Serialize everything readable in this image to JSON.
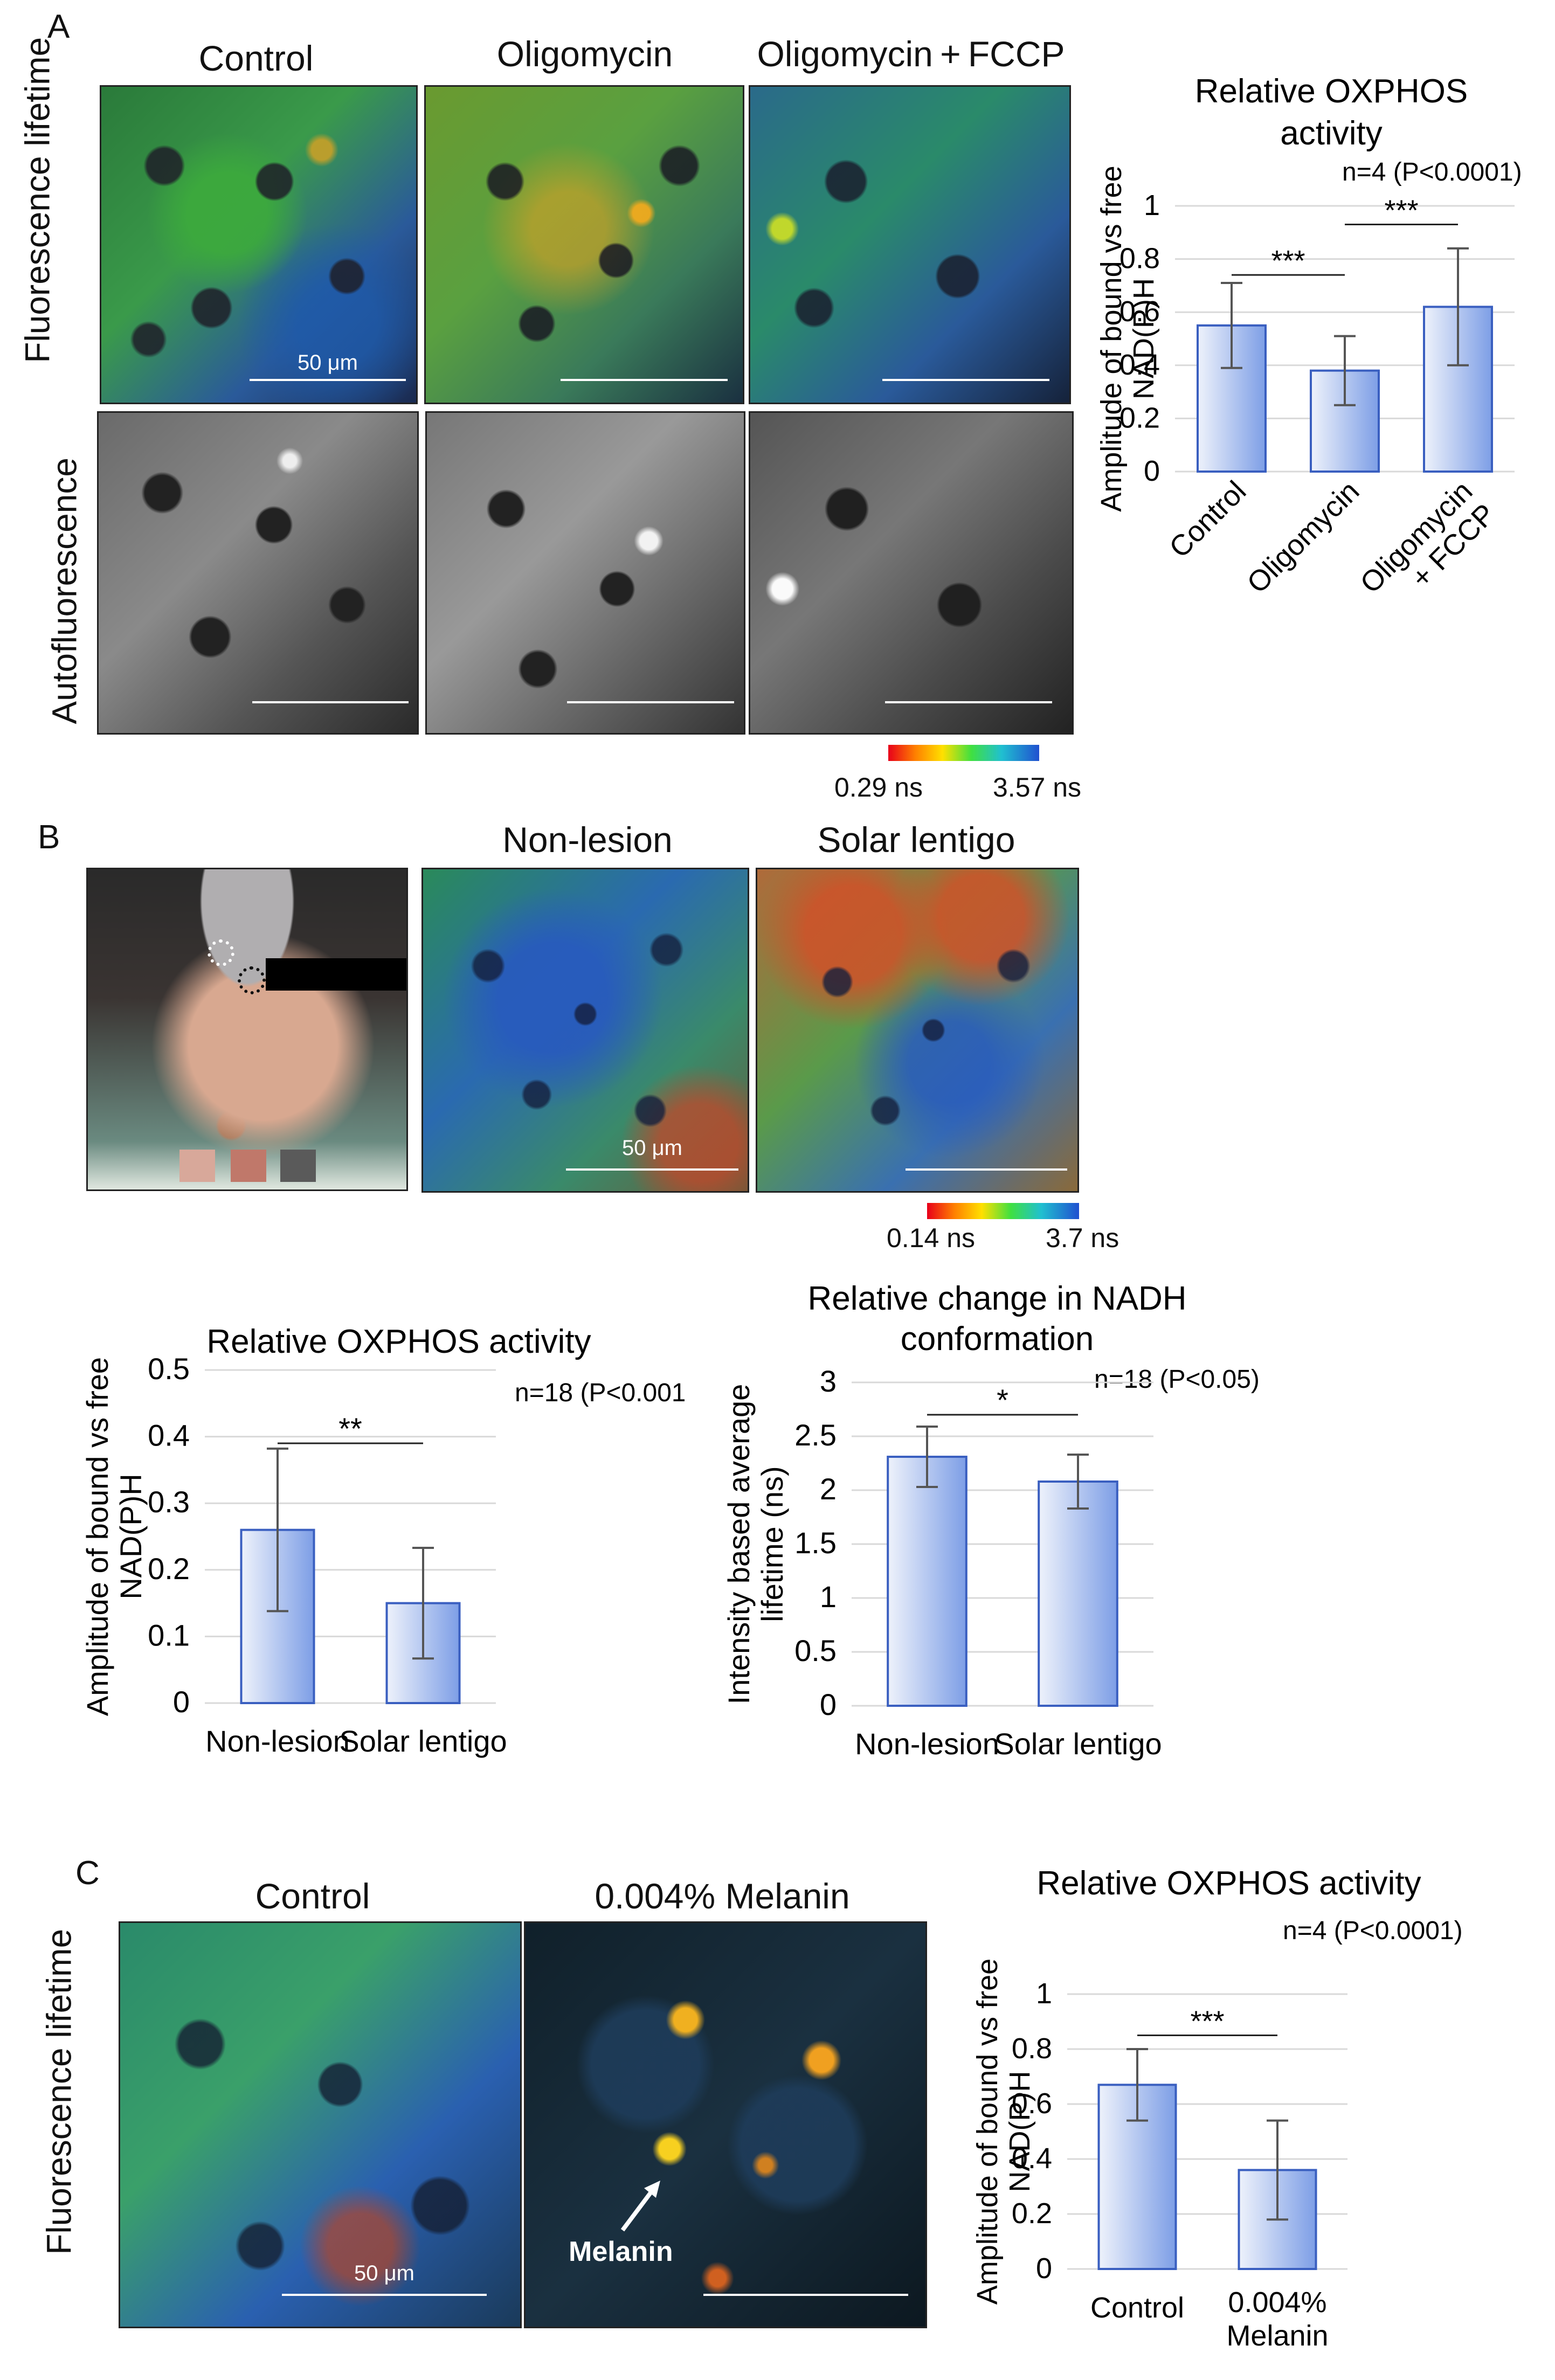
{
  "panel_a": {
    "letter": "A",
    "columns": [
      "Control",
      "Oligomycin",
      "Oligomycin + FCCP"
    ],
    "rows": [
      "Fluorescence lifetime",
      "Autofluorescence"
    ],
    "scale_label": "50 μm",
    "colorbar": {
      "min": "0.29 ns",
      "max": "3.57 ns"
    }
  },
  "panel_b": {
    "letter": "B",
    "columns": [
      "Non-lesion",
      "Solar lentigo"
    ],
    "scale_label": "50 μm",
    "colorbar": {
      "min": "0.14 ns",
      "max": "3.7 ns"
    }
  },
  "panel_c": {
    "letter": "C",
    "columns": [
      "Control",
      "0.004% Melanin"
    ],
    "row": "Fluorescence lifetime",
    "scale_label": "50 μm",
    "melanin_label": "Melanin"
  },
  "colors": {
    "bar_light": "#eef2fb",
    "bar_dark": "#7d9ee6",
    "error": "#555555",
    "grid": "#d9d9d9"
  },
  "chart_data": [
    {
      "id": "chart_a",
      "type": "bar",
      "title": "Relative OXPHOS activity",
      "note": "n=4 (P<0.0001)",
      "ylabel": "Amplitude of bound vs free NAD(P)H",
      "categories": [
        "Control",
        "Oligomycin",
        "Oligomycin + FCCP"
      ],
      "values": [
        0.55,
        0.38,
        0.62
      ],
      "errors": [
        0.16,
        0.13,
        0.22
      ],
      "ylim": [
        0,
        1
      ],
      "yticks": [
        "0",
        "0.2",
        "0.4",
        "0.6",
        "0.8",
        "1"
      ],
      "significance": [
        {
          "from": 0,
          "to": 1,
          "label": "***"
        },
        {
          "from": 1,
          "to": 2,
          "label": "***"
        }
      ]
    },
    {
      "id": "chart_b1",
      "type": "bar",
      "title": "Relative OXPHOS activity",
      "note": "n=18 (P<0.001)",
      "ylabel": "Amplitude of bound vs free NAD(P)H",
      "categories": [
        "Non-lesion",
        "Solar lentigo"
      ],
      "values": [
        0.26,
        0.15
      ],
      "errors": [
        0.122,
        0.083
      ],
      "ylim": [
        0,
        0.5
      ],
      "yticks": [
        "0",
        "0.1",
        "0.2",
        "0.3",
        "0.4",
        "0.5"
      ],
      "significance": [
        {
          "from": 0,
          "to": 1,
          "label": "**"
        }
      ]
    },
    {
      "id": "chart_b2",
      "type": "bar",
      "title": "Relative change in NADH conformation",
      "note": "n=18 (P<0.05)",
      "ylabel": "Intensity  based average lifetime (ns)",
      "categories": [
        "Non-lesion",
        "Solar lentigo"
      ],
      "values": [
        2.31,
        2.08
      ],
      "errors": [
        0.28,
        0.25
      ],
      "ylim": [
        0,
        3
      ],
      "yticks": [
        "0",
        "0.5",
        "1",
        "1.5",
        "2",
        "2.5",
        "3"
      ],
      "significance": [
        {
          "from": 0,
          "to": 1,
          "label": "*"
        }
      ]
    },
    {
      "id": "chart_c",
      "type": "bar",
      "title": "Relative OXPHOS activity",
      "note": "n=4 (P<0.0001)",
      "ylabel": "Amplitude of bound vs free NAD(P)H",
      "categories": [
        "Control",
        "0.004% Melanin"
      ],
      "values": [
        0.67,
        0.36
      ],
      "errors": [
        0.13,
        0.18
      ],
      "ylim": [
        0,
        1
      ],
      "yticks": [
        "0",
        "0.2",
        "0.4",
        "0.6",
        "0.8",
        "1"
      ],
      "significance": [
        {
          "from": 0,
          "to": 1,
          "label": "***"
        }
      ]
    }
  ]
}
